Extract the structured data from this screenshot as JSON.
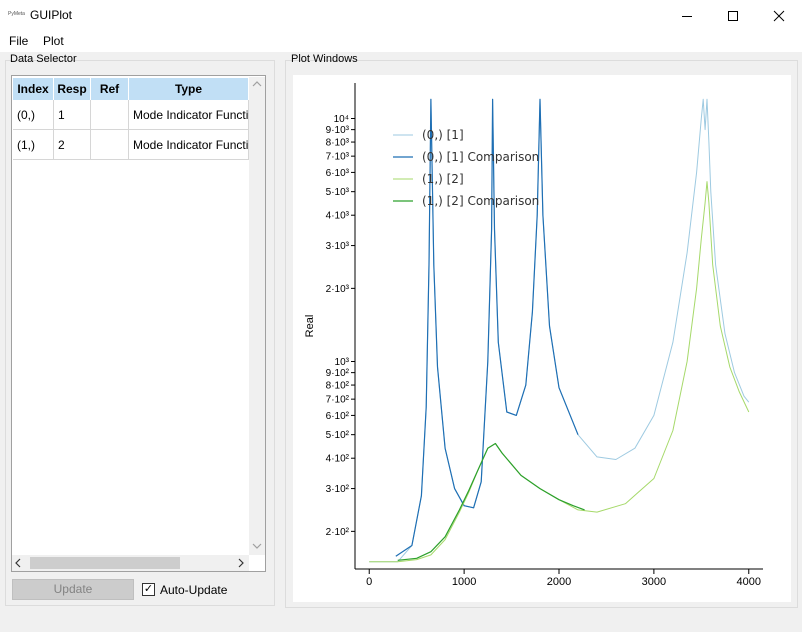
{
  "window": {
    "app_icon": "PyMeta",
    "title": "GUIPlot"
  },
  "menu": {
    "file": "File",
    "plot": "Plot"
  },
  "data_selector": {
    "label": "Data Selector",
    "headers": [
      "Index",
      "Resp",
      "Ref",
      "Type"
    ],
    "rows": [
      {
        "index": "(0,)",
        "resp": "1",
        "ref": "",
        "type": "Mode Indicator Functi"
      },
      {
        "index": "(1,)",
        "resp": "2",
        "ref": "",
        "type": "Mode Indicator Functi"
      }
    ],
    "update": "Update",
    "auto_update": "Auto-Update"
  },
  "plot_windows": {
    "label": "Plot Windows"
  },
  "colors": {
    "accent": "#c1dff5"
  },
  "chart_data": {
    "type": "line",
    "ylabel": "Real",
    "xlabel": "",
    "xlim": [
      -150,
      4150
    ],
    "ylim": [
      140,
      14000
    ],
    "yscale": "log",
    "xticks": [
      0,
      1000,
      2000,
      3000,
      4000
    ],
    "xtick_labels": [
      "0",
      "1000",
      "2000",
      "3000",
      "4000"
    ],
    "ytick_labels": [
      {
        "v": 10000,
        "t": "10⁴"
      },
      {
        "v": 9000,
        "t": "9·10³"
      },
      {
        "v": 8000,
        "t": "8·10³"
      },
      {
        "v": 7000,
        "t": "7·10³"
      },
      {
        "v": 6000,
        "t": "6·10³"
      },
      {
        "v": 5000,
        "t": "5·10³"
      },
      {
        "v": 4000,
        "t": "4·10³"
      },
      {
        "v": 3000,
        "t": "3·10³"
      },
      {
        "v": 2000,
        "t": "2·10³"
      },
      {
        "v": 1000,
        "t": "10³"
      },
      {
        "v": 900,
        "t": "9·10²"
      },
      {
        "v": 800,
        "t": "8·10²"
      },
      {
        "v": 700,
        "t": "7·10²"
      },
      {
        "v": 600,
        "t": "6·10²"
      },
      {
        "v": 500,
        "t": "5·10²"
      },
      {
        "v": 400,
        "t": "4·10²"
      },
      {
        "v": 300,
        "t": "3·10²"
      },
      {
        "v": 200,
        "t": "2·10²"
      }
    ],
    "series": [
      {
        "name": "(0,) [1]",
        "color": "#9ecae1",
        "width": 1,
        "x": [
          0,
          300,
          450,
          550,
          600,
          630,
          650,
          680,
          720,
          800,
          900,
          1000,
          1100,
          1180,
          1250,
          1290,
          1300,
          1320,
          1360,
          1450,
          1550,
          1650,
          1720,
          1770,
          1800,
          1830,
          1900,
          2000,
          2200,
          2400,
          2600,
          2800,
          3000,
          3200,
          3350,
          3450,
          3500,
          3520,
          3540,
          3560,
          3580,
          3600,
          3650,
          3750,
          3850,
          3950,
          4000
        ],
        "y": [
          150,
          150,
          175,
          280,
          650,
          2500,
          12000,
          2500,
          950,
          440,
          300,
          255,
          250,
          320,
          1000,
          3500,
          12000,
          3500,
          1200,
          620,
          600,
          800,
          1600,
          4000,
          12000,
          4000,
          1400,
          780,
          500,
          405,
          395,
          440,
          600,
          1200,
          2800,
          6000,
          10000,
          12000,
          9000,
          12000,
          8000,
          5000,
          2500,
          1300,
          900,
          720,
          680
        ]
      },
      {
        "name": "(0,) [1] Comparison",
        "color": "#1f6fb4",
        "width": 1.2,
        "x": [
          280,
          450,
          550,
          600,
          630,
          650,
          680,
          720,
          800,
          900,
          1000,
          1100,
          1180,
          1250,
          1290,
          1300,
          1320,
          1360,
          1450,
          1550,
          1650,
          1720,
          1770,
          1800,
          1830,
          1900,
          2000,
          2200
        ],
        "y": [
          158,
          175,
          280,
          650,
          2500,
          12000,
          2500,
          950,
          440,
          300,
          255,
          250,
          320,
          1000,
          3500,
          12000,
          3500,
          1200,
          620,
          600,
          800,
          1600,
          4000,
          12000,
          4000,
          1400,
          780,
          500
        ]
      },
      {
        "name": "(1,) [2]",
        "color": "#a6d96a",
        "width": 1,
        "x": [
          0,
          300,
          500,
          650,
          800,
          950,
          1050,
          1150,
          1250,
          1330,
          1400,
          1600,
          1800,
          2000,
          2200,
          2400,
          2700,
          3000,
          3200,
          3350,
          3450,
          3500,
          3540,
          3560,
          3580,
          3620,
          3700,
          3800,
          3900,
          4000
        ],
        "y": [
          150,
          150,
          153,
          160,
          185,
          240,
          290,
          360,
          440,
          460,
          420,
          340,
          300,
          270,
          245,
          240,
          260,
          330,
          520,
          1000,
          2000,
          3200,
          4500,
          5500,
          4500,
          2500,
          1400,
          950,
          750,
          620
        ]
      },
      {
        "name": "(1,) [2] Comparison",
        "color": "#2ca02c",
        "width": 1.2,
        "x": [
          300,
          500,
          650,
          800,
          950,
          1050,
          1150,
          1250,
          1330,
          1400,
          1600,
          1800,
          2000,
          2150,
          2270
        ],
        "y": [
          152,
          155,
          165,
          190,
          245,
          295,
          360,
          440,
          460,
          420,
          340,
          300,
          270,
          255,
          245
        ]
      }
    ]
  }
}
